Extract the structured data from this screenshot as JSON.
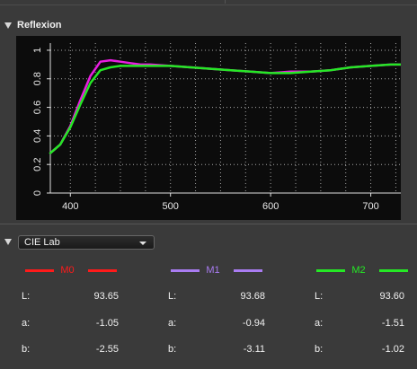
{
  "section": {
    "title": "Reflexion"
  },
  "colorspace": {
    "selected": "CIE Lab"
  },
  "measurements": [
    {
      "name": "M0",
      "color": "#ff1a1a",
      "L": "93.65",
      "a": "-1.05",
      "b": "-2.55"
    },
    {
      "name": "M1",
      "color": "#a97cf2",
      "L": "93.68",
      "a": "-0.94",
      "b": "-3.11"
    },
    {
      "name": "M2",
      "color": "#25e825",
      "L": "93.60",
      "a": "-1.51",
      "b": "-1.02"
    }
  ],
  "labels": {
    "L": "L:",
    "a": "a:",
    "b": "b:"
  },
  "chart_data": {
    "type": "line",
    "xlabel": "",
    "ylabel": "",
    "xlim": [
      380,
      730
    ],
    "ylim": [
      0,
      1.05
    ],
    "xticks": [
      400,
      500,
      600,
      700
    ],
    "yticks": [
      0,
      0.2,
      0.4,
      0.6,
      0.8,
      1
    ],
    "ytick_labels": [
      "0",
      "0.2",
      "0.4",
      "0.6",
      "0.8",
      "1"
    ],
    "grid": true,
    "series": [
      {
        "color": "#e81ee0",
        "x": [
          380,
          390,
          400,
          410,
          420,
          430,
          440,
          450,
          460,
          470,
          480,
          500,
          520,
          540,
          560,
          580,
          600,
          620,
          640,
          660,
          680,
          700,
          720,
          730
        ],
        "y": [
          0.28,
          0.34,
          0.47,
          0.65,
          0.82,
          0.92,
          0.93,
          0.92,
          0.91,
          0.9,
          0.9,
          0.89,
          0.88,
          0.87,
          0.86,
          0.85,
          0.84,
          0.85,
          0.85,
          0.86,
          0.88,
          0.89,
          0.9,
          0.9
        ]
      },
      {
        "color": "#25e825",
        "x": [
          380,
          390,
          400,
          410,
          420,
          430,
          440,
          450,
          460,
          470,
          480,
          500,
          520,
          540,
          560,
          580,
          600,
          620,
          640,
          660,
          680,
          700,
          720,
          730
        ],
        "y": [
          0.28,
          0.34,
          0.46,
          0.62,
          0.77,
          0.86,
          0.88,
          0.89,
          0.89,
          0.89,
          0.89,
          0.89,
          0.88,
          0.87,
          0.86,
          0.85,
          0.84,
          0.84,
          0.85,
          0.86,
          0.88,
          0.89,
          0.9,
          0.9
        ]
      }
    ]
  }
}
